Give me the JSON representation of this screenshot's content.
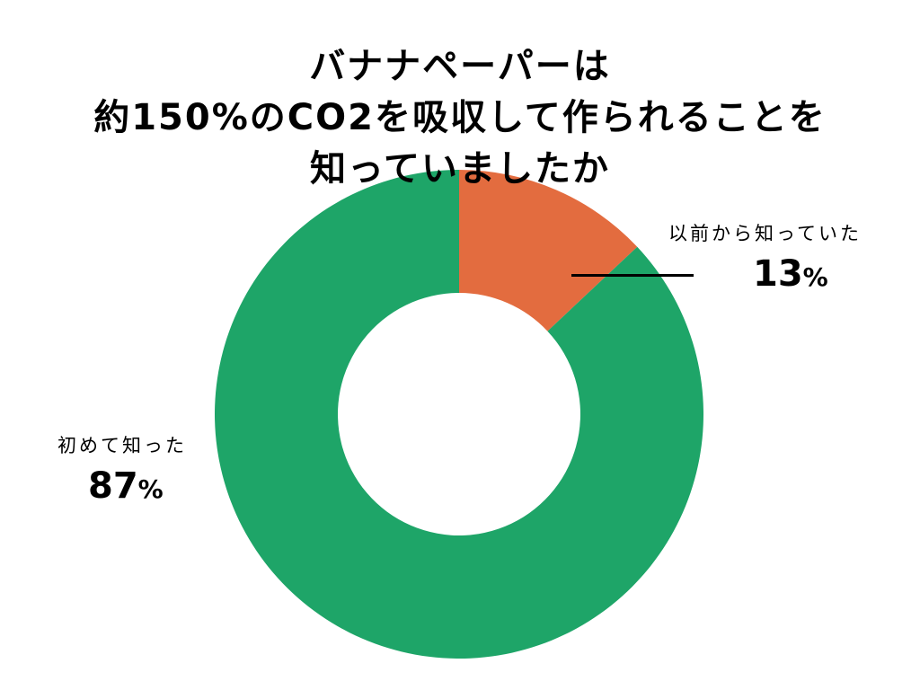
{
  "title": {
    "line1": "バナナペーパーは",
    "line2": "約150%のCO2を吸収して作られることを",
    "line3": "知っていましたか"
  },
  "labels": {
    "known": {
      "name": "以前から知っていた",
      "value": "13",
      "unit": "%"
    },
    "first": {
      "name": "初めて知った",
      "value": "87",
      "unit": "%"
    }
  },
  "colors": {
    "known": "#E36C3F",
    "first": "#1EA568",
    "background": "#FFFFFF"
  },
  "chart_data": {
    "type": "pie",
    "subtype": "donut",
    "title": "バナナペーパーは約150%のCO2を吸収して作られることを知っていましたか",
    "categories": [
      "以前から知っていた",
      "初めて知った"
    ],
    "values": [
      13,
      87
    ],
    "unit": "%",
    "colors": [
      "#E36C3F",
      "#1EA568"
    ],
    "start_angle_deg": 0,
    "direction": "clockwise",
    "legend": "none (direct labels)",
    "grid": false
  }
}
